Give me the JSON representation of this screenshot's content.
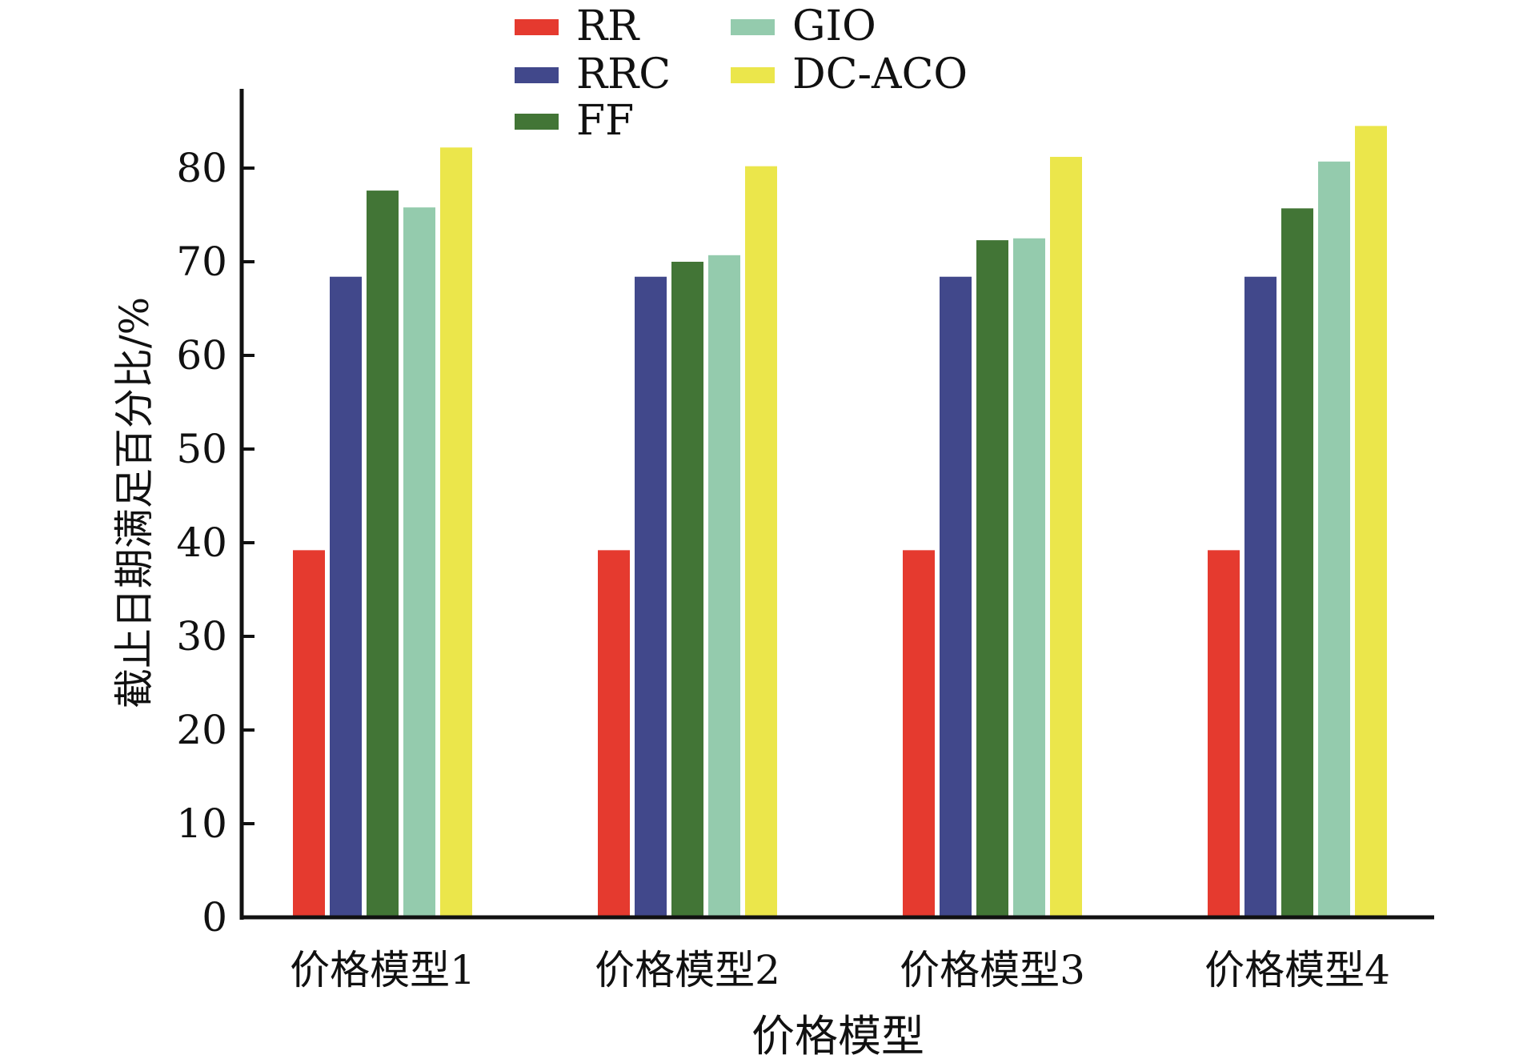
{
  "chart_data": {
    "type": "bar",
    "title": "",
    "xlabel": "价格模型",
    "ylabel": "截止日期满足百分比/%",
    "categories": [
      "价格模型1",
      "价格模型2",
      "价格模型3",
      "价格模型4"
    ],
    "ylim": [
      0,
      88
    ],
    "yticks": [
      0,
      10,
      20,
      30,
      40,
      50,
      60,
      70,
      80
    ],
    "grid": false,
    "legend_position": "top-center",
    "series": [
      {
        "name": "RR",
        "color": "#e53a2f",
        "values": [
          39.2,
          39.2,
          39.2,
          39.2
        ]
      },
      {
        "name": "RRC",
        "color": "#41488b",
        "values": [
          68.4,
          68.4,
          68.4,
          68.4
        ]
      },
      {
        "name": "FF",
        "color": "#427536",
        "values": [
          77.6,
          70.0,
          72.3,
          75.7
        ]
      },
      {
        "name": "GIO",
        "color": "#94cbad",
        "values": [
          75.8,
          70.7,
          72.5,
          80.7
        ]
      },
      {
        "name": "DC-ACO",
        "color": "#ebe64b",
        "values": [
          82.2,
          80.2,
          81.2,
          84.5
        ]
      }
    ]
  }
}
